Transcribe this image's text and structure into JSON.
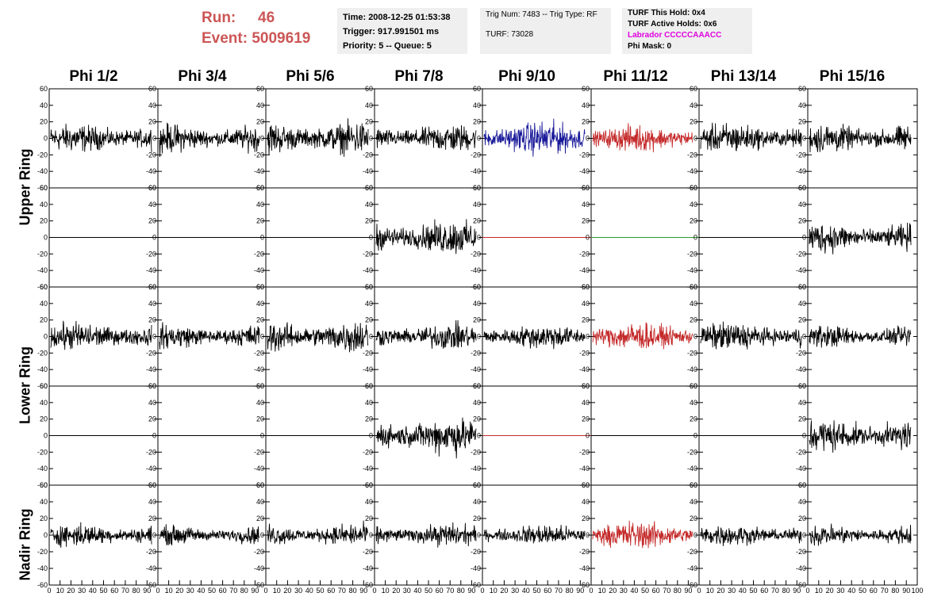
{
  "header": {
    "run_label": "Run:",
    "run_value": "46",
    "event_label": "Event:",
    "event_value": "5009619"
  },
  "info_box_1": {
    "time": "Time: 2008-12-25 01:53:38",
    "trigger": "Trigger: 917.991501 ms",
    "priority": "Priority: 5 -- Queue: 5"
  },
  "info_box_2": {
    "trig": "Trig Num: 7483 -- Trig Type: RF",
    "turf": "TURF: 73028"
  },
  "info_box_3": {
    "this_hold": "TURF This Hold: 0x4",
    "active_holds": "TURF Active Holds: 0x6",
    "labrador": "Labrador CCCCCAAACC",
    "phi_mask": "Phi Mask: 0"
  },
  "colors": {
    "trace": "#000000",
    "blue": "#1a1a9a",
    "red": "#c42a2a",
    "green": "#2a9a2a",
    "run_text": "#cc5656",
    "labrador_text": "#e000e0"
  },
  "chart_data": {
    "type": "line",
    "columns": [
      "Phi 1/2",
      "Phi 3/4",
      "Phi 5/6",
      "Phi 7/8",
      "Phi 9/10",
      "Phi 11/12",
      "Phi 13/14",
      "Phi 15/16"
    ],
    "ring_labels": [
      {
        "label": "Upper Ring",
        "rows": [
          0,
          1
        ]
      },
      {
        "label": "Lower Ring",
        "rows": [
          2,
          3
        ]
      },
      {
        "label": "Nadir Ring",
        "rows": [
          4
        ]
      }
    ],
    "ylim": [
      -60,
      60
    ],
    "yticks": [
      -60,
      -40,
      -20,
      0,
      20,
      40,
      60
    ],
    "xlim": [
      0,
      100
    ],
    "xticks": [
      0,
      10,
      20,
      30,
      40,
      50,
      60,
      70,
      80,
      90,
      100
    ],
    "rows": [
      {
        "cells": [
          {
            "color": "black",
            "amp": 15
          },
          {
            "color": "black",
            "amp": 15
          },
          {
            "color": "black",
            "amp": 18
          },
          {
            "color": "black",
            "amp": 15
          },
          {
            "color": "blue",
            "amp": 18
          },
          {
            "color": "red",
            "amp": 14
          },
          {
            "color": "black",
            "amp": 16
          },
          {
            "color": "black",
            "amp": 16
          }
        ]
      },
      {
        "cells": [
          {
            "color": "black",
            "amp": 0
          },
          {
            "color": "black",
            "amp": 0
          },
          {
            "color": "black",
            "amp": 0
          },
          {
            "color": "black",
            "amp": 18
          },
          {
            "color": "red",
            "amp": 0
          },
          {
            "color": "green",
            "amp": 0
          },
          {
            "color": "black",
            "amp": 0
          },
          {
            "color": "black",
            "amp": 16
          }
        ]
      },
      {
        "cells": [
          {
            "color": "black",
            "amp": 15
          },
          {
            "color": "black",
            "amp": 13
          },
          {
            "color": "black",
            "amp": 18
          },
          {
            "color": "black",
            "amp": 14
          },
          {
            "color": "black",
            "amp": 13
          },
          {
            "color": "red",
            "amp": 15
          },
          {
            "color": "black",
            "amp": 15
          },
          {
            "color": "black",
            "amp": 12
          }
        ]
      },
      {
        "cells": [
          {
            "color": "black",
            "amp": 0
          },
          {
            "color": "black",
            "amp": 0
          },
          {
            "color": "black",
            "amp": 0
          },
          {
            "color": "black",
            "amp": 20
          },
          {
            "color": "red",
            "amp": 0
          },
          {
            "color": "black",
            "amp": 0
          },
          {
            "color": "black",
            "amp": 0
          },
          {
            "color": "black",
            "amp": 18
          }
        ]
      },
      {
        "cells": [
          {
            "color": "black",
            "amp": 12
          },
          {
            "color": "black",
            "amp": 10
          },
          {
            "color": "black",
            "amp": 12
          },
          {
            "color": "black",
            "amp": 12
          },
          {
            "color": "black",
            "amp": 11
          },
          {
            "color": "red",
            "amp": 15
          },
          {
            "color": "black",
            "amp": 11
          },
          {
            "color": "black",
            "amp": 11
          }
        ]
      }
    ]
  }
}
